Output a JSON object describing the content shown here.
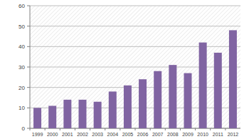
{
  "chart_data": {
    "type": "bar",
    "categories": [
      "1999",
      "2000",
      "2001",
      "2002",
      "2003",
      "2004",
      "2005",
      "2006",
      "2007",
      "2008",
      "2009",
      "2010",
      "2011",
      "2012"
    ],
    "values": [
      10,
      11,
      14,
      14,
      13,
      18,
      21,
      24,
      28,
      31,
      27,
      42,
      37,
      48
    ],
    "color": "#8064a2",
    "ylim": [
      0,
      60
    ],
    "yticks": [
      0,
      10,
      20,
      30,
      40,
      50,
      60
    ],
    "grid": true
  }
}
